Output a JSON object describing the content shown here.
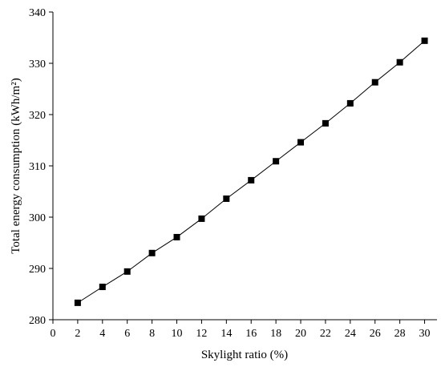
{
  "chart_data": {
    "type": "line",
    "xlabel": "Skylight ratio (%)",
    "ylabel": "Total energy consumption (kWh/m²)",
    "x": [
      2,
      4,
      6,
      8,
      10,
      12,
      14,
      16,
      18,
      20,
      22,
      24,
      26,
      28,
      30
    ],
    "values": [
      283.3,
      286.4,
      289.4,
      293.0,
      296.1,
      299.7,
      303.6,
      307.2,
      310.9,
      314.6,
      318.3,
      322.2,
      326.3,
      330.2,
      334.4
    ],
    "color": "#000000",
    "marker": "square",
    "xlim": [
      0,
      31
    ],
    "xticks": [
      0,
      2,
      4,
      6,
      8,
      10,
      12,
      14,
      16,
      18,
      20,
      22,
      24,
      26,
      28,
      30
    ],
    "ylim": [
      280,
      340
    ],
    "yticks": [
      280,
      290,
      300,
      310,
      320,
      330,
      340
    ]
  }
}
